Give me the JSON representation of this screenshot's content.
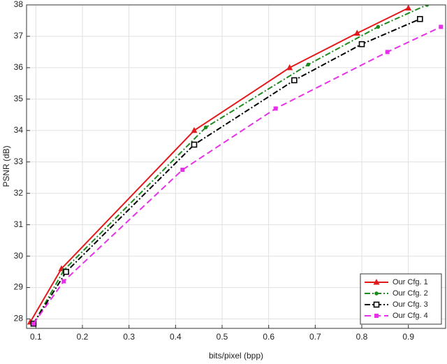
{
  "chart_data": {
    "type": "line",
    "xlabel": "bits/pixel  (bpp)",
    "ylabel": "PSNR (dB)",
    "xlim": [
      0.08,
      0.98
    ],
    "ylim": [
      27.7,
      38
    ],
    "xticks": [
      0.1,
      0.2,
      0.3,
      0.4,
      0.5,
      0.6,
      0.7,
      0.8,
      0.9
    ],
    "yticks": [
      28,
      29,
      30,
      31,
      32,
      33,
      34,
      35,
      36,
      37,
      38
    ],
    "grid": true,
    "legend": "lower right",
    "series": [
      {
        "name": "Our Cfg. 1",
        "color": "#e31a1c",
        "marker": "triangle",
        "line": "solid",
        "x": [
          0.088,
          0.155,
          0.44,
          0.645,
          0.79,
          0.9
        ],
        "values": [
          27.9,
          29.6,
          34.0,
          36.0,
          37.1,
          37.9
        ]
      },
      {
        "name": "Our Cfg. 2",
        "color": "#1e8a1e",
        "marker": "dot",
        "line": "dashdot",
        "x": [
          0.095,
          0.16,
          0.465,
          0.685,
          0.835,
          0.94
        ],
        "values": [
          27.85,
          29.55,
          34.1,
          36.1,
          37.3,
          38.0
        ]
      },
      {
        "name": "Our Cfg. 3",
        "color": "#000000",
        "marker": "square",
        "line": "dashdot",
        "x": [
          0.095,
          0.165,
          0.44,
          0.655,
          0.8,
          0.925
        ],
        "values": [
          27.85,
          29.5,
          33.55,
          35.6,
          36.75,
          37.55
        ]
      },
      {
        "name": "Our Cfg. 4",
        "color": "#e632e6",
        "marker": "filled-square",
        "line": "dashed",
        "x": [
          0.095,
          0.16,
          0.415,
          0.615,
          0.855,
          0.97
        ],
        "values": [
          27.85,
          29.2,
          32.75,
          34.7,
          36.5,
          37.3
        ]
      }
    ]
  }
}
